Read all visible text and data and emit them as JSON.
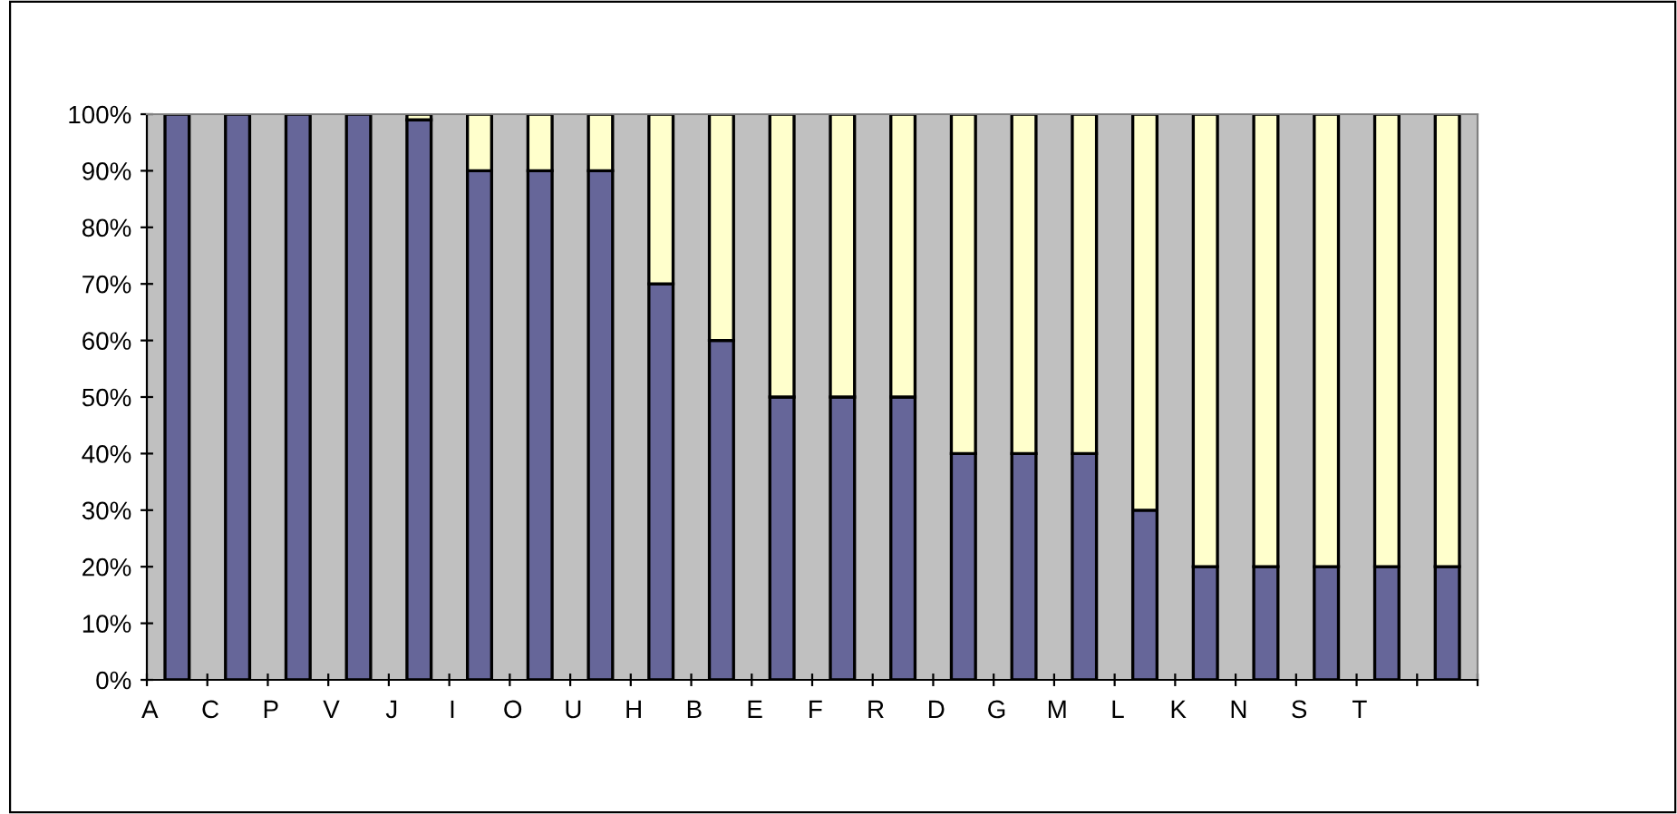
{
  "chart_data": {
    "type": "bar",
    "stacked": true,
    "categories": [
      "A",
      "C",
      "P",
      "V",
      "J",
      "I",
      "O",
      "U",
      "H",
      "B",
      "E",
      "F",
      "R",
      "D",
      "G",
      "M",
      "L",
      "K",
      "N",
      "S",
      "T",
      null
    ],
    "series": [
      {
        "color": "#666699",
        "values": [
          100,
          100,
          100,
          100,
          99,
          90,
          90,
          90,
          70,
          60,
          50,
          50,
          50,
          40,
          40,
          40,
          30,
          20,
          20,
          20,
          20,
          20
        ]
      },
      {
        "color": "#ffffcc",
        "values": [
          null,
          null,
          null,
          null,
          1,
          10,
          10,
          10,
          30,
          40,
          50,
          50,
          50,
          60,
          60,
          60,
          70,
          80,
          80,
          80,
          80,
          80
        ]
      }
    ],
    "ylim": [
      0,
      100
    ],
    "yticks": [
      {
        "value": 0,
        "label": "0%"
      },
      {
        "value": 10,
        "label": "10%"
      },
      {
        "value": 20,
        "label": "20%"
      },
      {
        "value": 30,
        "label": "30%"
      },
      {
        "value": 40,
        "label": "40%"
      },
      {
        "value": 50,
        "label": "50%"
      },
      {
        "value": 60,
        "label": "60%"
      },
      {
        "value": 70,
        "label": "70%"
      },
      {
        "value": 80,
        "label": "80%"
      },
      {
        "value": 90,
        "label": "90%"
      },
      {
        "value": 100,
        "label": "100%"
      }
    ],
    "grid": false,
    "legend": false
  }
}
